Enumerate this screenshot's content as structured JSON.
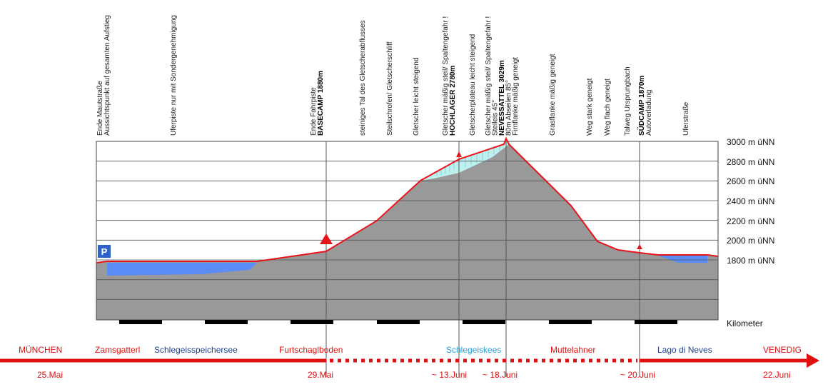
{
  "annotations": [
    {
      "lines": [
        "Ende Mautstraße",
        "Aussichtspunkt auf gesamten Aufstieg"
      ],
      "bold": [
        false,
        false
      ]
    },
    {
      "lines": [
        "Uferpiste nur mit Sondergenehmigung"
      ],
      "bold": [
        false
      ]
    },
    {
      "lines": [
        "Ende Fahrpiste",
        "BASECAMP 1880m"
      ],
      "bold": [
        false,
        true
      ]
    },
    {
      "lines": [
        "steiniges Tal des Gletscherabflusses"
      ],
      "bold": [
        false
      ]
    },
    {
      "lines": [
        "Steilschrofen/ Gletscherschliff"
      ],
      "bold": [
        false
      ]
    },
    {
      "lines": [
        "Gletscher leicht steigend"
      ],
      "bold": [
        false
      ]
    },
    {
      "lines": [
        "Gletscher mäßig steil/ Spaltengefahr !",
        "HOCHLAGER 2780m"
      ],
      "bold": [
        false,
        true
      ]
    },
    {
      "lines": [
        "Gletscherplateau leicht steigend"
      ],
      "bold": [
        false
      ]
    },
    {
      "lines": [
        "Gletscher mäßig steil/ Spaltengefahr !",
        "Steileis 45°",
        "NEVESSATTEL 3029m",
        "80m Abseilen 85°",
        "Firnflanke mäßig geneigt"
      ],
      "bold": [
        false,
        false,
        true,
        false,
        false
      ]
    },
    {
      "lines": [
        "Grasflanke mäßig geneigt"
      ],
      "bold": [
        false
      ]
    },
    {
      "lines": [
        "Weg stark geneigt"
      ],
      "bold": [
        false
      ]
    },
    {
      "lines": [
        "Weg flach geneigt"
      ],
      "bold": [
        false
      ]
    },
    {
      "lines": [
        "Talweg Ursprungbach"
      ],
      "bold": [
        false
      ]
    },
    {
      "lines": [
        "SÜDCAMP 1870m",
        "Autoverladung"
      ],
      "bold": [
        true,
        false
      ]
    },
    {
      "lines": [
        "Uferstraße"
      ],
      "bold": [
        false
      ]
    }
  ],
  "altitude_labels": [
    "3000 m üNN",
    "2800 m üNN",
    "2600 m üNN",
    "2400 m üNN",
    "2200 m üNN",
    "2000 m üNN",
    "1800 m üNN"
  ],
  "km_label": "Kilometer",
  "parking": {
    "label": "P"
  },
  "route": {
    "stations": [
      {
        "name": "MÜNCHEN",
        "color": "red"
      },
      {
        "name": "Zamsgatterl",
        "color": "red"
      },
      {
        "name": "Schlegeisspeichersee",
        "color": "blue"
      },
      {
        "name": "Furtschaglboden",
        "color": "red"
      },
      {
        "name": "Schlegeiskees",
        "color": "cyan"
      },
      {
        "name": "Muttelahner",
        "color": "red"
      },
      {
        "name": "Lago di Neves",
        "color": "blue"
      },
      {
        "name": "VENEDIG",
        "color": "red"
      }
    ],
    "dates": [
      "25.Mai",
      "29.Mai",
      "~ 13.Juni",
      "~ 18.Juni",
      "~ 20.Juni",
      "22.Juni"
    ]
  },
  "colors": {
    "terrain": "#999999",
    "profile": "#e8141c",
    "water": "#5b8cf5",
    "glacier": "#bff0f0",
    "accent_red": "#e01010",
    "station_blue": "#1c3f8c",
    "station_cyan": "#2ba3d8",
    "parking": "#2d63c8"
  },
  "icons": [
    "parking-icon",
    "camp-tent-icon",
    "arrow-right-icon"
  ]
}
